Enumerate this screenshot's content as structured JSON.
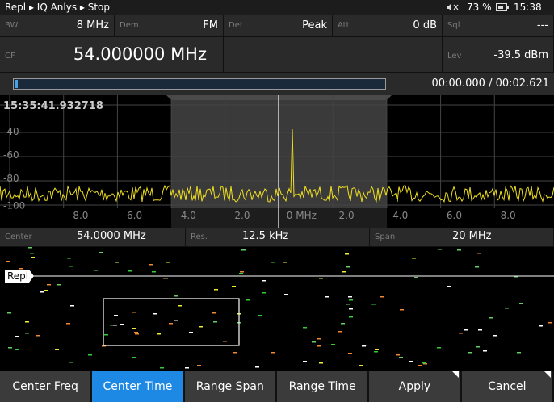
{
  "status_bar": {
    "breadcrumb": "Repl ▸ IQ Anlys ▸ Stop",
    "battery": "73 %",
    "clock": "15:38"
  },
  "settings": [
    {
      "label": "BW",
      "value": "8 MHz"
    },
    {
      "label": "Dem",
      "value": "FM"
    },
    {
      "label": "Det",
      "value": "Peak"
    },
    {
      "label": "Att",
      "value": "0 dB"
    },
    {
      "label": "Sql",
      "value": "---"
    }
  ],
  "frequency": {
    "label": "CF",
    "value": "54.000000 MHz"
  },
  "level": {
    "label": "Lev",
    "value": "-39.5 dBm"
  },
  "playback": {
    "time": "00:00.000 / 00:02.621"
  },
  "spectrum": {
    "timestamp": "15:35:41.932718",
    "y_labels": [
      "-40",
      "-60",
      "-80",
      "-100"
    ],
    "x_labels": [
      "-8.0",
      "-6.0",
      "-4.0",
      "-2.0",
      "0 MHz",
      "2.0",
      "4.0",
      "6.0",
      "8.0"
    ]
  },
  "span_info": [
    {
      "label": "Center",
      "value": "54.0000 MHz"
    },
    {
      "label": "Res.",
      "value": "12.5 kHz"
    },
    {
      "label": "Span",
      "value": "20 MHz"
    }
  ],
  "spectrogram": {
    "marker_label": "Repl"
  },
  "softkeys": [
    "Center Freq",
    "Center Time",
    "Range Span",
    "Range Time",
    "Apply",
    "Cancel"
  ],
  "selected_softkey": "Center Time"
}
